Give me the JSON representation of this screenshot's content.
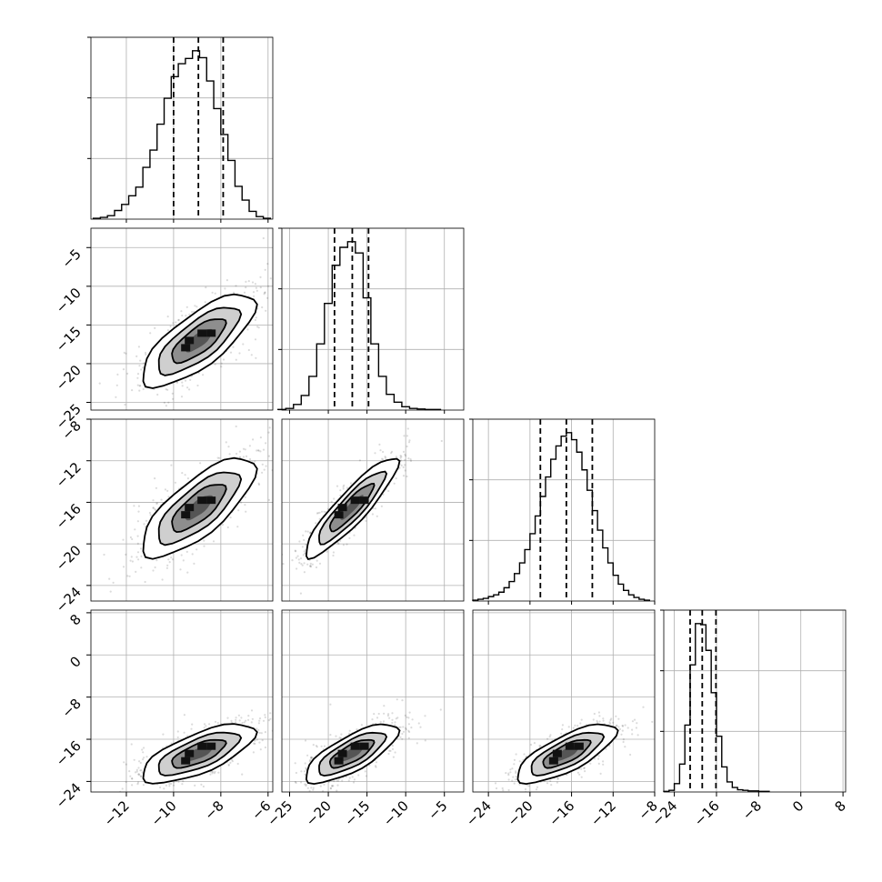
{
  "chart_data": {
    "type": "corner",
    "variables": 4,
    "grid": true,
    "quantile_lines": "dashed",
    "colors": {
      "contour": "#000000",
      "hist": "#000000",
      "grid": "#b0b0b0",
      "scatter": "#000000"
    },
    "axes": [
      {
        "range": [
          -13.5,
          -5.8
        ],
        "ticks": [
          -12,
          -10,
          -8,
          -6
        ],
        "tick_labels": [
          "−12",
          "−10",
          "−8",
          "−6"
        ]
      },
      {
        "range": [
          -26.0,
          -2.5
        ],
        "ticks": [
          -25,
          -20,
          -15,
          -10,
          -5
        ],
        "tick_labels": [
          "−25",
          "−20",
          "−15",
          "−10",
          "−5"
        ]
      },
      {
        "range": [
          -25.5,
          -8.0
        ],
        "ticks": [
          -24,
          -20,
          -16,
          -12,
          -8
        ],
        "tick_labels": [
          "−24",
          "−20",
          "−16",
          "−12",
          "−8"
        ]
      },
      {
        "range": [
          -26.0,
          8.5
        ],
        "ticks": [
          -24,
          -16,
          -8,
          0,
          8
        ],
        "tick_labels": [
          "−24",
          "−16",
          "−8",
          "0",
          "8"
        ]
      }
    ],
    "marginals": [
      {
        "variable": 1,
        "quantiles": [
          -10.0,
          -8.95,
          -7.9
        ],
        "bins": [
          -13.25,
          -12.95,
          -12.65,
          -12.35,
          -12.05,
          -11.75,
          -11.45,
          -11.15,
          -10.85,
          -10.55,
          -10.25,
          -9.95,
          -9.65,
          -9.35,
          -9.05,
          -8.75,
          -8.45,
          -8.15,
          -7.85,
          -7.55,
          -7.25,
          -6.95,
          -6.65,
          -6.35,
          -6.05
        ],
        "counts": [
          1,
          2,
          4,
          10,
          17,
          27,
          37,
          60,
          80,
          110,
          140,
          165,
          180,
          186,
          195,
          187,
          160,
          128,
          98,
          68,
          38,
          22,
          9,
          3,
          1
        ]
      },
      {
        "variable": 2,
        "quantiles": [
          -19.2,
          -16.9,
          -14.8
        ],
        "bins": [
          -26,
          -25,
          -24,
          -23,
          -22,
          -21,
          -20,
          -19,
          -18,
          -17,
          -16,
          -15,
          -14,
          -13,
          -12,
          -11,
          -10,
          -9,
          -8,
          -7,
          -6
        ],
        "counts": [
          1,
          3,
          10,
          26,
          60,
          118,
          190,
          258,
          290,
          300,
          280,
          200,
          118,
          60,
          28,
          14,
          6,
          3,
          2,
          1,
          1
        ]
      },
      {
        "variable": 3,
        "quantiles": [
          -19.0,
          -16.5,
          -14.0
        ],
        "bins": [
          -25.25,
          -24.75,
          -24.25,
          -23.75,
          -23.25,
          -22.75,
          -22.25,
          -21.75,
          -21.25,
          -20.75,
          -20.25,
          -19.75,
          -19.25,
          -18.75,
          -18.25,
          -17.75,
          -17.25,
          -16.75,
          -16.25,
          -15.75,
          -15.25,
          -14.75,
          -14.25,
          -13.75,
          -13.25,
          -12.75,
          -12.25,
          -11.75,
          -11.25,
          -10.75,
          -10.25,
          -9.75,
          -9.25,
          -8.75
        ],
        "counts": [
          1,
          2,
          3,
          5,
          7,
          10,
          15,
          22,
          31,
          43,
          58,
          76,
          96,
          118,
          140,
          160,
          175,
          186,
          190,
          182,
          168,
          148,
          125,
          102,
          80,
          60,
          43,
          29,
          19,
          12,
          7,
          4,
          2,
          1
        ]
      },
      {
        "variable": 4,
        "quantiles": [
          -21.0,
          -18.7,
          -16.1
        ],
        "bins": [
          -25.5,
          -24.5,
          -23.5,
          -22.5,
          -21.5,
          -20.5,
          -19.5,
          -18.5,
          -17.5,
          -16.5,
          -15.5,
          -14.5,
          -13.5,
          -12.5,
          -11.5,
          -10.5,
          -9.5,
          -8.5,
          -7.5,
          -6.5
        ],
        "counts": [
          1,
          3,
          15,
          50,
          120,
          228,
          302,
          300,
          254,
          178,
          100,
          45,
          18,
          8,
          4,
          3,
          2,
          2,
          1,
          1
        ]
      }
    ],
    "pairs": [
      {
        "x_var": 1,
        "y_var": 2,
        "mean": [
          -8.95,
          -17.0
        ],
        "sd": [
          1.2,
          3.0
        ],
        "corr": 0.75
      },
      {
        "x_var": 1,
        "y_var": 3,
        "mean": [
          -8.95,
          -16.5
        ],
        "sd": [
          1.2,
          2.4
        ],
        "corr": 0.75
      },
      {
        "x_var": 2,
        "y_var": 3,
        "mean": [
          -17.0,
          -16.5
        ],
        "sd": [
          3.0,
          2.4
        ],
        "corr": 0.9
      },
      {
        "x_var": 1,
        "y_var": 4,
        "mean": [
          -8.95,
          -18.7
        ],
        "sd": [
          1.2,
          2.8
        ],
        "corr": 0.7
      },
      {
        "x_var": 2,
        "y_var": 4,
        "mean": [
          -17.0,
          -18.7
        ],
        "sd": [
          3.0,
          2.8
        ],
        "corr": 0.75
      },
      {
        "x_var": 3,
        "y_var": 4,
        "mean": [
          -16.5,
          -18.7
        ],
        "sd": [
          2.4,
          2.8
        ],
        "corr": 0.75
      }
    ]
  }
}
